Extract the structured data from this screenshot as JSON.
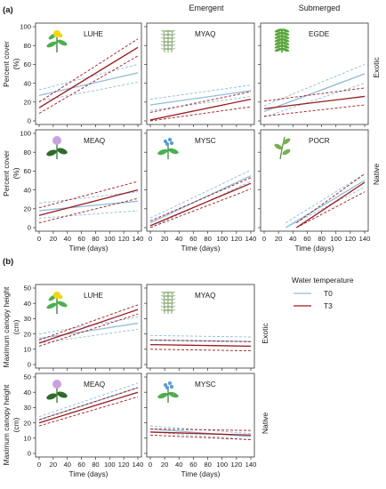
{
  "figure": {
    "headers": {
      "emergent": "Emergent",
      "submerged": "Submerged"
    },
    "section_labels": {
      "a": "(a)",
      "b": "(b)"
    },
    "row_labels": {
      "exotic": "Exotic",
      "native": "Native"
    },
    "legend": {
      "title": "Water temperature",
      "t0": "T0",
      "t3": "T3"
    },
    "colors": {
      "t0": "#8fbcd9",
      "t3": "#9b1b1e",
      "frame": "#333333"
    },
    "icons": {
      "LUHE": "yellow-flower-plant-icon",
      "MYAQ": "feathery-aquatic-plant-icon",
      "EGDE": "green-waterweed-icon",
      "MEAQ": "purple-mint-flower-icon",
      "MYSC": "blue-forget-me-not-icon",
      "POCR": "submerged-pondweed-icon"
    }
  },
  "chart_data": [
    {
      "type": "line",
      "id": "a-LUHE",
      "section": "a",
      "label": "LUHE",
      "xlabel": "",
      "ylabel": "Percent cover (%)",
      "xlim": [
        0,
        140
      ],
      "ylim": [
        0,
        100
      ],
      "xticks": [
        0,
        20,
        40,
        60,
        80,
        100,
        120,
        140
      ],
      "yticks": [
        0,
        20,
        40,
        60,
        80,
        100
      ],
      "series": [
        {
          "name": "T0",
          "x": [
            0,
            140
          ],
          "y": [
            27,
            51
          ],
          "lower": [
            21,
            41
          ],
          "upper": [
            33,
            60
          ]
        },
        {
          "name": "T3",
          "x": [
            0,
            140
          ],
          "y": [
            14,
            78
          ],
          "lower": [
            8,
            69
          ],
          "upper": [
            20,
            87
          ]
        }
      ]
    },
    {
      "type": "line",
      "id": "a-MYAQ",
      "section": "a",
      "label": "MYAQ",
      "xlabel": "",
      "ylabel": "",
      "xlim": [
        0,
        140
      ],
      "ylim": [
        0,
        100
      ],
      "xticks": [
        0,
        20,
        40,
        60,
        80,
        100,
        120,
        140
      ],
      "yticks": [
        0,
        20,
        40,
        60,
        80,
        100
      ],
      "series": [
        {
          "name": "T0",
          "x": [
            0,
            140
          ],
          "y": [
            17,
            32
          ],
          "lower": [
            11,
            26
          ],
          "upper": [
            23,
            38
          ]
        },
        {
          "name": "T3",
          "x": [
            0,
            140
          ],
          "y": [
            1,
            23
          ],
          "lower": [
            0,
            15
          ],
          "upper": [
            9,
            31
          ]
        }
      ]
    },
    {
      "type": "line",
      "id": "a-EGDE",
      "section": "a",
      "label": "EGDE",
      "xlabel": "",
      "ylabel": "",
      "xlim": [
        0,
        140
      ],
      "ylim": [
        0,
        100
      ],
      "xticks": [
        0,
        20,
        40,
        60,
        80,
        100,
        120,
        140
      ],
      "yticks": [
        0,
        20,
        40,
        60,
        80,
        100
      ],
      "series": [
        {
          "name": "T0",
          "x": [
            0,
            140
          ],
          "y": [
            10,
            50
          ],
          "lower": [
            4,
            40
          ],
          "upper": [
            16,
            60
          ]
        },
        {
          "name": "T3",
          "x": [
            0,
            140
          ],
          "y": [
            13,
            26
          ],
          "lower": [
            5,
            17
          ],
          "upper": [
            21,
            35
          ]
        }
      ]
    },
    {
      "type": "line",
      "id": "a-MEAQ",
      "section": "a",
      "label": "MEAQ",
      "xlabel": "Time (days)",
      "ylabel": "Percent cover (%)",
      "xlim": [
        0,
        140
      ],
      "ylim": [
        0,
        100
      ],
      "xticks": [
        0,
        20,
        40,
        60,
        80,
        100,
        120,
        140
      ],
      "yticks": [
        0,
        20,
        40,
        60,
        80,
        100
      ],
      "series": [
        {
          "name": "T0",
          "x": [
            0,
            140
          ],
          "y": [
            18,
            28
          ],
          "lower": [
            10,
            18
          ],
          "upper": [
            26,
            38
          ]
        },
        {
          "name": "T3",
          "x": [
            0,
            140
          ],
          "y": [
            13,
            40
          ],
          "lower": [
            5,
            31
          ],
          "upper": [
            21,
            49
          ]
        }
      ]
    },
    {
      "type": "line",
      "id": "a-MYSC",
      "section": "a",
      "label": "MYSC",
      "xlabel": "Time (days)",
      "ylabel": "",
      "xlim": [
        0,
        140
      ],
      "ylim": [
        0,
        100
      ],
      "xticks": [
        0,
        20,
        40,
        60,
        80,
        100,
        120,
        140
      ],
      "yticks": [
        0,
        20,
        40,
        60,
        80,
        100
      ],
      "series": [
        {
          "name": "T0",
          "x": [
            0,
            140
          ],
          "y": [
            5,
            55
          ],
          "lower": [
            0,
            49
          ],
          "upper": [
            10,
            61
          ]
        },
        {
          "name": "T3",
          "x": [
            0,
            140
          ],
          "y": [
            2,
            47
          ],
          "lower": [
            0,
            41
          ],
          "upper": [
            7,
            53
          ]
        }
      ]
    },
    {
      "type": "line",
      "id": "a-POCR",
      "section": "a",
      "label": "POCR",
      "xlabel": "Time (days)",
      "ylabel": "",
      "xlim": [
        0,
        140
      ],
      "ylim": [
        0,
        100
      ],
      "xticks": [
        0,
        20,
        40,
        60,
        80,
        100,
        120,
        140
      ],
      "yticks": [
        0,
        20,
        40,
        60,
        80,
        100
      ],
      "series": [
        {
          "name": "T0",
          "x": [
            30,
            140
          ],
          "y": [
            0,
            50
          ],
          "lower": [
            0,
            43
          ],
          "upper": [
            5,
            57
          ]
        },
        {
          "name": "T3",
          "x": [
            45,
            140
          ],
          "y": [
            0,
            48
          ],
          "lower": [
            0,
            38
          ],
          "upper": [
            5,
            57
          ]
        }
      ]
    },
    {
      "type": "line",
      "id": "b-LUHE",
      "section": "b",
      "label": "LUHE",
      "xlabel": "",
      "ylabel": "Maximum canopy height (cm)",
      "xlim": [
        0,
        140
      ],
      "ylim": [
        0,
        50
      ],
      "xticks": [
        0,
        20,
        40,
        60,
        80,
        100,
        120,
        140
      ],
      "yticks": [
        0,
        10,
        20,
        30,
        40,
        50
      ],
      "series": [
        {
          "name": "T0",
          "x": [
            0,
            140
          ],
          "y": [
            17,
            27
          ],
          "lower": [
            14,
            23
          ],
          "upper": [
            20,
            31
          ]
        },
        {
          "name": "T3",
          "x": [
            0,
            140
          ],
          "y": [
            14,
            36
          ],
          "lower": [
            12,
            33
          ],
          "upper": [
            16,
            39
          ]
        }
      ]
    },
    {
      "type": "line",
      "id": "b-MYAQ",
      "section": "b",
      "label": "MYAQ",
      "xlabel": "",
      "ylabel": "",
      "xlim": [
        0,
        140
      ],
      "ylim": [
        0,
        50
      ],
      "xticks": [
        0,
        20,
        40,
        60,
        80,
        100,
        120,
        140
      ],
      "yticks": [
        0,
        10,
        20,
        30,
        40,
        50
      ],
      "series": [
        {
          "name": "T0",
          "x": [
            0,
            140
          ],
          "y": [
            16,
            15
          ],
          "lower": [
            13,
            12
          ],
          "upper": [
            19,
            18
          ]
        },
        {
          "name": "T3",
          "x": [
            0,
            140
          ],
          "y": [
            13,
            12
          ],
          "lower": [
            10,
            9
          ],
          "upper": [
            16,
            15
          ]
        }
      ]
    },
    {
      "type": "line",
      "id": "b-MEAQ",
      "section": "b",
      "label": "MEAQ",
      "xlabel": "Time (days)",
      "ylabel": "Maximum canopy height (cm)",
      "xlim": [
        0,
        140
      ],
      "ylim": [
        0,
        50
      ],
      "xticks": [
        0,
        20,
        40,
        60,
        80,
        100,
        120,
        140
      ],
      "yticks": [
        0,
        10,
        20,
        30,
        40,
        50
      ],
      "series": [
        {
          "name": "T0",
          "x": [
            0,
            140
          ],
          "y": [
            22,
            43
          ],
          "lower": [
            20,
            40
          ],
          "upper": [
            24,
            46
          ]
        },
        {
          "name": "T3",
          "x": [
            0,
            140
          ],
          "y": [
            20,
            40
          ],
          "lower": [
            18,
            37
          ],
          "upper": [
            22,
            43
          ]
        }
      ]
    },
    {
      "type": "line",
      "id": "b-MYSC",
      "section": "b",
      "label": "MYSC",
      "xlabel": "Time (days)",
      "ylabel": "",
      "xlim": [
        0,
        140
      ],
      "ylim": [
        0,
        50
      ],
      "xticks": [
        0,
        20,
        40,
        60,
        80,
        100,
        120,
        140
      ],
      "yticks": [
        0,
        10,
        20,
        30,
        40,
        50
      ],
      "series": [
        {
          "name": "T0",
          "x": [
            0,
            140
          ],
          "y": [
            16,
            11
          ],
          "lower": [
            14,
            9
          ],
          "upper": [
            18,
            13
          ]
        },
        {
          "name": "T3",
          "x": [
            0,
            140
          ],
          "y": [
            14,
            12
          ],
          "lower": [
            12,
            9
          ],
          "upper": [
            16,
            15
          ]
        }
      ]
    }
  ]
}
